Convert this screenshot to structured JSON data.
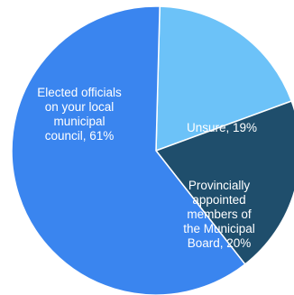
{
  "chart_data": {
    "type": "pie",
    "title": "",
    "slices": [
      {
        "label_lines": [
          "Elected officials",
          "on your local",
          "municipal",
          "council, 61%"
        ],
        "label": "Elected officials on your local municipal council",
        "value": 61,
        "color": "#3a85ef"
      },
      {
        "label_lines": [
          "Unsure, 19%"
        ],
        "label": "Unsure",
        "value": 19,
        "color": "#6cc2f8"
      },
      {
        "label_lines": [
          "Provincially",
          "appointed",
          "members of",
          "the Municipal",
          "Board, 20%"
        ],
        "label": "Provincially appointed members of the Municipal Board",
        "value": 20,
        "color": "#1f4e6c"
      }
    ]
  }
}
